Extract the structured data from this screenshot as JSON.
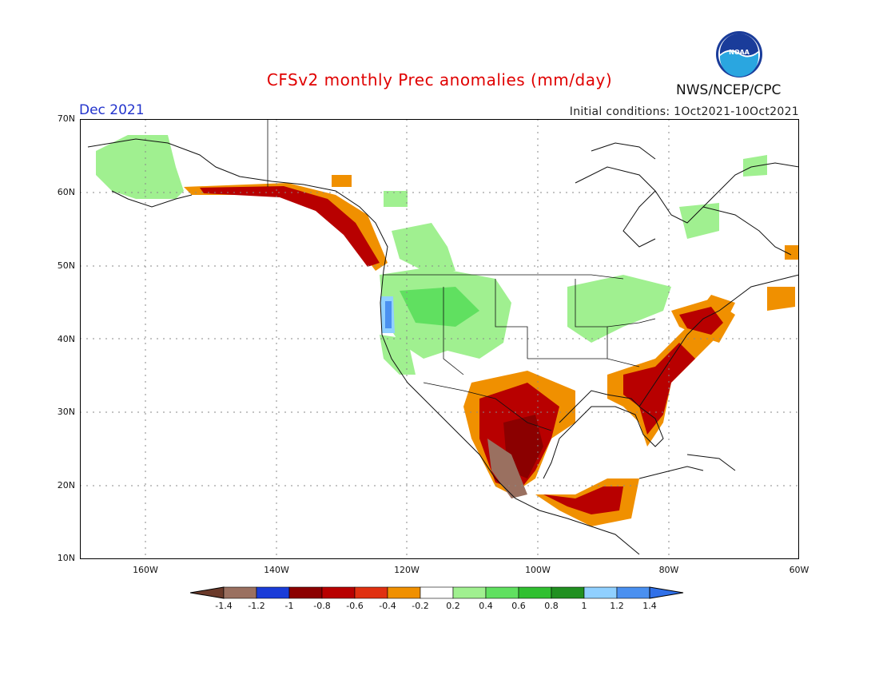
{
  "header": {
    "title": "CFSv2 monthly Prec anomalies (mm/day)",
    "month": "Dec 2021",
    "initial_conditions": "Initial conditions: 1Oct2021-10Oct2021",
    "agency": "NWS/NCEP/CPC",
    "logo_text": "NOAA"
  },
  "map": {
    "lon_range": [
      -172,
      -60
    ],
    "lat_range": [
      10,
      70
    ],
    "lat_labels": [
      "70N",
      "60N",
      "50N",
      "40N",
      "30N",
      "20N",
      "10N"
    ],
    "lon_labels": [
      "160W",
      "140W",
      "120W",
      "100W",
      "80W",
      "60W"
    ]
  },
  "colorbar": {
    "labels": [
      "-1.4",
      "-1.2",
      "-1",
      "-0.8",
      "-0.6",
      "-0.4",
      "-0.2",
      "0.2",
      "0.4",
      "0.6",
      "0.8",
      "1",
      "1.2",
      "1.4"
    ],
    "colors": [
      "#6b3a2a",
      "#9a7060",
      "#1a3cd8",
      "#8b0000",
      "#b80000",
      "#e03010",
      "#f09000",
      "#ffffff",
      "#a0f090",
      "#60e060",
      "#30c030",
      "#209020",
      "#90d0ff",
      "#4a90f0",
      "#3070e8"
    ]
  }
}
